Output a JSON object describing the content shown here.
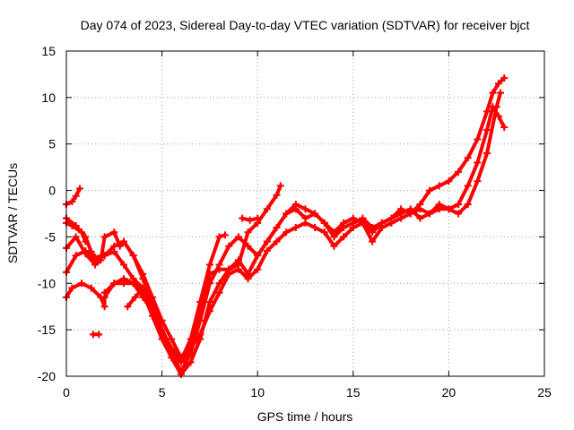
{
  "chart_data": {
    "type": "line",
    "title": "Day 074 of 2023, Sidereal Day-to-day VTEC variation (SDTVAR) for receiver bjct",
    "xlabel": "GPS time / hours",
    "ylabel": "SDTVAR / TECUs",
    "xlim": [
      0,
      25
    ],
    "ylim": [
      -20,
      15
    ],
    "xticks": [
      0,
      5,
      10,
      15,
      20,
      25
    ],
    "yticks": [
      -20,
      -15,
      -10,
      -5,
      0,
      5,
      10,
      15
    ],
    "grid": true,
    "series_color": "#ff0000",
    "series": [
      {
        "name": "track-1",
        "points": [
          [
            0.0,
            -1.5
          ],
          [
            0.3,
            -1.2
          ],
          [
            0.5,
            -0.6
          ],
          [
            0.7,
            0.2
          ]
        ]
      },
      {
        "name": "track-2",
        "points": [
          [
            0.0,
            -3.0
          ],
          [
            0.5,
            -3.8
          ],
          [
            1.0,
            -5.0
          ],
          [
            1.3,
            -6.6
          ],
          [
            1.5,
            -7.2
          ],
          [
            2.0,
            -7.0
          ],
          [
            2.5,
            -6.6
          ],
          [
            3.0,
            -8.0
          ],
          [
            3.5,
            -9.5
          ],
          [
            4.0,
            -10.5
          ],
          [
            4.5,
            -12.5
          ],
          [
            5.0,
            -15.0
          ],
          [
            5.5,
            -17.0
          ],
          [
            6.0,
            -18.3
          ],
          [
            6.5,
            -16.0
          ],
          [
            7.0,
            -12.0
          ],
          [
            7.5,
            -8.0
          ],
          [
            8.0,
            -5.0
          ],
          [
            8.3,
            -4.8
          ]
        ]
      },
      {
        "name": "track-3",
        "points": [
          [
            0.0,
            -6.2
          ],
          [
            0.5,
            -5.0
          ],
          [
            1.0,
            -6.8
          ],
          [
            1.5,
            -8.0
          ],
          [
            1.8,
            -7.5
          ],
          [
            2.0,
            -5.0
          ],
          [
            2.5,
            -4.5
          ],
          [
            2.8,
            -6.0
          ],
          [
            3.0,
            -5.5
          ],
          [
            3.5,
            -7.0
          ],
          [
            4.0,
            -9.0
          ],
          [
            4.5,
            -11.5
          ],
          [
            5.0,
            -14.0
          ],
          [
            5.5,
            -16.0
          ],
          [
            6.0,
            -18.0
          ],
          [
            6.5,
            -16.5
          ],
          [
            7.0,
            -13.0
          ],
          [
            7.5,
            -9.0
          ],
          [
            8.0,
            -8.5
          ],
          [
            8.5,
            -8.5
          ],
          [
            9.0,
            -8.0
          ],
          [
            9.5,
            -4.5
          ],
          [
            10.0,
            -3.5
          ],
          [
            10.5,
            -2.0
          ],
          [
            11.0,
            -0.5
          ],
          [
            11.2,
            0.5
          ]
        ]
      },
      {
        "name": "track-4",
        "points": [
          [
            0.0,
            -8.8
          ],
          [
            0.5,
            -7.0
          ],
          [
            1.0,
            -6.5
          ],
          [
            1.5,
            -7.5
          ],
          [
            2.0,
            -7.0
          ],
          [
            2.5,
            -6.0
          ],
          [
            3.0,
            -5.5
          ],
          [
            3.5,
            -7.0
          ],
          [
            4.0,
            -9.5
          ],
          [
            4.5,
            -12.0
          ],
          [
            5.0,
            -15.0
          ],
          [
            5.5,
            -17.5
          ],
          [
            6.0,
            -19.5
          ],
          [
            6.5,
            -17.5
          ],
          [
            7.0,
            -14.0
          ],
          [
            7.5,
            -10.0
          ],
          [
            8.0,
            -8.0
          ],
          [
            8.5,
            -6.0
          ],
          [
            9.0,
            -5.0
          ],
          [
            9.5,
            -6.0
          ],
          [
            10.0,
            -7.0
          ],
          [
            10.5,
            -5.5
          ],
          [
            11.0,
            -4.0
          ],
          [
            11.5,
            -2.5
          ],
          [
            12.0,
            -2.0
          ],
          [
            12.5,
            -3.0
          ],
          [
            13.0,
            -2.5
          ],
          [
            13.5,
            -3.5
          ],
          [
            14.0,
            -4.5
          ],
          [
            14.5,
            -3.5
          ],
          [
            15.0,
            -3.0
          ],
          [
            15.5,
            -3.5
          ],
          [
            16.0,
            -4.5
          ],
          [
            16.5,
            -3.5
          ],
          [
            17.0,
            -3.0
          ],
          [
            17.5,
            -2.0
          ],
          [
            18.0,
            -2.5
          ],
          [
            18.5,
            -1.5
          ],
          [
            19.0,
            0.0
          ],
          [
            19.5,
            0.5
          ],
          [
            20.0,
            1.0
          ],
          [
            20.5,
            2.0
          ],
          [
            21.0,
            3.5
          ],
          [
            21.5,
            5.5
          ],
          [
            22.0,
            8.5
          ],
          [
            22.3,
            10.5
          ],
          [
            22.6,
            11.5
          ],
          [
            22.9,
            12.1
          ]
        ]
      },
      {
        "name": "track-5",
        "points": [
          [
            0.0,
            -11.5
          ],
          [
            0.3,
            -10.5
          ],
          [
            0.8,
            -10.0
          ],
          [
            1.3,
            -10.5
          ],
          [
            1.8,
            -11.5
          ],
          [
            2.0,
            -12.5
          ],
          [
            2.0,
            -11.5
          ],
          [
            2.5,
            -10.0
          ],
          [
            3.0,
            -9.5
          ],
          [
            3.5,
            -10.0
          ],
          [
            4.0,
            -11.0
          ],
          [
            4.5,
            -13.5
          ],
          [
            5.0,
            -16.0
          ],
          [
            5.5,
            -18.0
          ],
          [
            6.0,
            -19.8
          ],
          [
            6.5,
            -18.5
          ],
          [
            7.0,
            -16.0
          ],
          [
            7.5,
            -12.0
          ],
          [
            8.0,
            -10.0
          ],
          [
            8.5,
            -8.5
          ],
          [
            9.0,
            -7.5
          ],
          [
            9.5,
            -9.0
          ],
          [
            10.0,
            -7.0
          ],
          [
            10.5,
            -5.5
          ],
          [
            11.0,
            -4.0
          ],
          [
            11.5,
            -2.5
          ],
          [
            12.0,
            -1.5
          ],
          [
            12.5,
            -2.0
          ],
          [
            13.0,
            -2.5
          ],
          [
            13.5,
            -3.5
          ],
          [
            14.0,
            -5.0
          ],
          [
            14.5,
            -4.0
          ],
          [
            15.0,
            -3.5
          ],
          [
            15.5,
            -3.0
          ],
          [
            16.0,
            -4.0
          ],
          [
            16.5,
            -3.5
          ],
          [
            17.0,
            -3.0
          ],
          [
            17.5,
            -2.5
          ],
          [
            18.0,
            -2.0
          ],
          [
            18.5,
            -3.0
          ],
          [
            19.0,
            -2.5
          ],
          [
            19.5,
            -2.0
          ],
          [
            20.0,
            -2.0
          ],
          [
            20.5,
            -1.5
          ],
          [
            21.0,
            0.5
          ],
          [
            21.5,
            3.0
          ],
          [
            22.0,
            6.5
          ],
          [
            22.3,
            9.0
          ],
          [
            22.6,
            8.0
          ],
          [
            22.9,
            6.8
          ]
        ]
      },
      {
        "name": "track-6",
        "points": [
          [
            2.0,
            -11.0
          ],
          [
            2.5,
            -10.0
          ],
          [
            3.0,
            -10.0
          ],
          [
            3.5,
            -10.0
          ],
          [
            4.0,
            -11.5
          ],
          [
            4.5,
            -13.0
          ],
          [
            5.0,
            -15.5
          ],
          [
            5.5,
            -17.5
          ],
          [
            6.0,
            -18.5
          ],
          [
            6.5,
            -17.0
          ],
          [
            7.0,
            -15.5
          ],
          [
            7.5,
            -13.0
          ],
          [
            8.0,
            -11.0
          ],
          [
            8.5,
            -9.0
          ],
          [
            9.0,
            -8.5
          ],
          [
            9.5,
            -9.5
          ],
          [
            10.0,
            -8.5
          ],
          [
            10.5,
            -6.5
          ],
          [
            11.0,
            -5.5
          ],
          [
            11.5,
            -4.5
          ],
          [
            12.0,
            -4.0
          ],
          [
            12.5,
            -3.5
          ],
          [
            13.0,
            -4.0
          ],
          [
            13.5,
            -4.5
          ],
          [
            14.0,
            -6.0
          ],
          [
            14.5,
            -5.0
          ],
          [
            15.0,
            -4.0
          ],
          [
            15.5,
            -3.5
          ],
          [
            16.0,
            -5.5
          ],
          [
            16.5,
            -4.0
          ],
          [
            17.0,
            -3.5
          ],
          [
            17.5,
            -3.0
          ],
          [
            18.0,
            -2.5
          ],
          [
            18.5,
            -2.0
          ],
          [
            19.0,
            -2.5
          ],
          [
            19.5,
            -1.5
          ],
          [
            20.0,
            -2.0
          ],
          [
            20.5,
            -2.5
          ],
          [
            21.0,
            -1.5
          ],
          [
            21.5,
            1.0
          ],
          [
            22.0,
            4.0
          ],
          [
            22.5,
            9.0
          ],
          [
            22.7,
            10.5
          ]
        ]
      },
      {
        "name": "track-7",
        "points": [
          [
            0.0,
            -3.5
          ],
          [
            0.3,
            -3.8
          ],
          [
            0.8,
            -4.5
          ],
          [
            1.0,
            -5.5
          ]
        ]
      },
      {
        "name": "track-8",
        "points": [
          [
            1.4,
            -15.5
          ],
          [
            1.7,
            -15.5
          ]
        ]
      },
      {
        "name": "track-9",
        "points": [
          [
            3.2,
            -12.5
          ],
          [
            3.6,
            -11.5
          ],
          [
            4.0,
            -10.5
          ]
        ]
      },
      {
        "name": "track-10",
        "points": [
          [
            9.2,
            -3.0
          ],
          [
            9.6,
            -3.2
          ],
          [
            10.0,
            -3.0
          ]
        ]
      }
    ]
  }
}
